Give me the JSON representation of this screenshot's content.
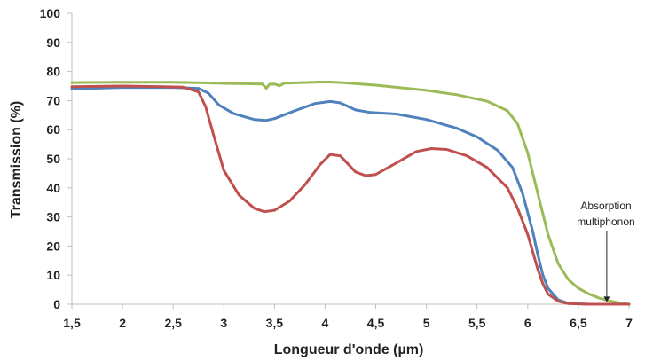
{
  "chart_data": {
    "type": "line",
    "title": "",
    "xlabel": "Longueur d'onde (µm)",
    "ylabel": "Transmission (%)",
    "xlim": [
      1.5,
      7
    ],
    "ylim": [
      0,
      100
    ],
    "x_ticks": [
      1.5,
      2,
      2.5,
      3,
      3.5,
      4,
      4.5,
      5,
      5.5,
      6,
      6.5,
      7
    ],
    "x_tick_labels": [
      "1,5",
      "2",
      "2,5",
      "3",
      "3,5",
      "4",
      "4,5",
      "5",
      "5,5",
      "6",
      "6,5",
      "7"
    ],
    "y_ticks": [
      0,
      10,
      20,
      30,
      40,
      50,
      60,
      70,
      80,
      90,
      100
    ],
    "y_tick_labels": [
      "0",
      "10",
      "20",
      "30",
      "40",
      "50",
      "60",
      "70",
      "80",
      "90",
      "100"
    ],
    "grid": false,
    "legend": "none",
    "annotation": {
      "lines": [
        "Absorption",
        "multiphonon"
      ],
      "arrow_target": [
        6.78,
        0.5
      ]
    },
    "series": [
      {
        "color": "#9bbb59",
        "points": [
          [
            1.5,
            76.2
          ],
          [
            2,
            76.3
          ],
          [
            2.5,
            76.3
          ],
          [
            2.8,
            76.1
          ],
          [
            3.2,
            75.8
          ],
          [
            3.38,
            75.7
          ],
          [
            3.42,
            74.2
          ],
          [
            3.45,
            75.6
          ],
          [
            3.5,
            75.7
          ],
          [
            3.55,
            75.1
          ],
          [
            3.6,
            76.0
          ],
          [
            4,
            76.4
          ],
          [
            4.1,
            76.3
          ],
          [
            4.5,
            75.3
          ],
          [
            5,
            73.5
          ],
          [
            5.3,
            72.0
          ],
          [
            5.6,
            69.8
          ],
          [
            5.8,
            66.5
          ],
          [
            5.9,
            62.0
          ],
          [
            6.0,
            52.0
          ],
          [
            6.1,
            38.0
          ],
          [
            6.2,
            24.0
          ],
          [
            6.3,
            14.0
          ],
          [
            6.4,
            8.5
          ],
          [
            6.5,
            5.5
          ],
          [
            6.6,
            3.6
          ],
          [
            6.7,
            2.2
          ],
          [
            6.8,
            1.2
          ],
          [
            6.9,
            0.5
          ],
          [
            7,
            0.0
          ]
        ]
      },
      {
        "color": "#4f81bd",
        "points": [
          [
            1.5,
            74.0
          ],
          [
            2,
            74.5
          ],
          [
            2.5,
            74.5
          ],
          [
            2.75,
            74.2
          ],
          [
            2.85,
            72.5
          ],
          [
            2.95,
            68.5
          ],
          [
            3.1,
            65.5
          ],
          [
            3.3,
            63.5
          ],
          [
            3.42,
            63.2
          ],
          [
            3.5,
            63.8
          ],
          [
            3.7,
            66.5
          ],
          [
            3.9,
            69.0
          ],
          [
            4.05,
            69.7
          ],
          [
            4.15,
            69.2
          ],
          [
            4.3,
            66.8
          ],
          [
            4.45,
            65.9
          ],
          [
            4.7,
            65.4
          ],
          [
            5,
            63.5
          ],
          [
            5.3,
            60.5
          ],
          [
            5.5,
            57.5
          ],
          [
            5.7,
            53.0
          ],
          [
            5.85,
            47.0
          ],
          [
            5.95,
            38.0
          ],
          [
            6.05,
            25.0
          ],
          [
            6.1,
            17.0
          ],
          [
            6.15,
            10.0
          ],
          [
            6.2,
            5.5
          ],
          [
            6.3,
            1.5
          ],
          [
            6.4,
            0.3
          ],
          [
            6.6,
            0.0
          ],
          [
            7,
            0.0
          ]
        ]
      },
      {
        "color": "#c0504d",
        "points": [
          [
            1.5,
            74.8
          ],
          [
            2,
            75.0
          ],
          [
            2.4,
            74.8
          ],
          [
            2.6,
            74.6
          ],
          [
            2.75,
            73.0
          ],
          [
            2.82,
            68.0
          ],
          [
            2.9,
            58.0
          ],
          [
            3.0,
            46.0
          ],
          [
            3.15,
            37.5
          ],
          [
            3.3,
            33.0
          ],
          [
            3.4,
            31.8
          ],
          [
            3.5,
            32.3
          ],
          [
            3.65,
            35.5
          ],
          [
            3.8,
            41.0
          ],
          [
            3.95,
            48.0
          ],
          [
            4.05,
            51.5
          ],
          [
            4.15,
            51.0
          ],
          [
            4.3,
            45.5
          ],
          [
            4.4,
            44.2
          ],
          [
            4.5,
            44.6
          ],
          [
            4.7,
            48.5
          ],
          [
            4.9,
            52.5
          ],
          [
            5.05,
            53.5
          ],
          [
            5.2,
            53.2
          ],
          [
            5.4,
            51.0
          ],
          [
            5.6,
            47.0
          ],
          [
            5.8,
            40.0
          ],
          [
            5.9,
            33.0
          ],
          [
            6.0,
            24.0
          ],
          [
            6.05,
            18.0
          ],
          [
            6.1,
            12.0
          ],
          [
            6.15,
            7.0
          ],
          [
            6.2,
            3.5
          ],
          [
            6.3,
            1.0
          ],
          [
            6.4,
            0.2
          ],
          [
            6.6,
            0.0
          ],
          [
            7,
            0.0
          ]
        ]
      }
    ]
  }
}
